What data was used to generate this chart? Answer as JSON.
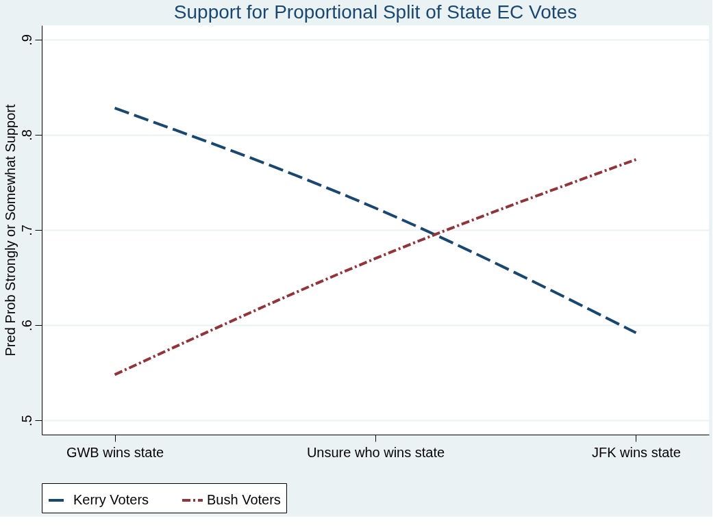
{
  "chart_data": {
    "type": "line",
    "title": "Support for Proportional Split of State EC Votes",
    "ylabel": "Pred Prob Strongly or Somewhat Support",
    "categories": [
      "GWB wins state",
      "Unsure who wins state",
      "JFK wins state"
    ],
    "series": [
      {
        "name": "Kerry Voters",
        "color": "#1a476f",
        "line_style": "dashed",
        "values": [
          0.828,
          0.723,
          0.592
        ]
      },
      {
        "name": "Bush Voters",
        "color": "#90353b",
        "line_style": "dashdot",
        "values": [
          0.548,
          0.67,
          0.774
        ]
      }
    ],
    "ylim": [
      0.485,
      0.915
    ],
    "yticks": [
      {
        "value": 0.5,
        "label": ".5"
      },
      {
        "value": 0.6,
        "label": ".6"
      },
      {
        "value": 0.7,
        "label": ".7"
      },
      {
        "value": 0.8,
        "label": ".8"
      },
      {
        "value": 0.9,
        "label": ".9"
      }
    ],
    "grid": "y",
    "legend": "bottom",
    "marker": "none"
  }
}
